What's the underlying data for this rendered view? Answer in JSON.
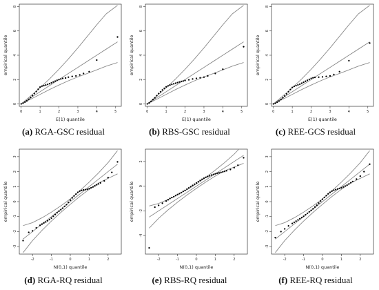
{
  "chart_data": [
    {
      "type": "scatter",
      "panel_id": "a",
      "caption_label": "(a)",
      "caption_text": " RGA-GSC residual",
      "xlabel": "E(1) quantile",
      "ylabel": "empirical quantile",
      "xlim": [
        -0.1,
        5.3
      ],
      "ylim": [
        -0.2,
        8.2
      ],
      "xticks": [
        0,
        1,
        2,
        3,
        4,
        5
      ],
      "yticks": [
        0,
        2,
        4,
        6,
        8
      ],
      "points": [
        [
          0,
          0
        ],
        [
          0.1,
          0.06
        ],
        [
          0.2,
          0.15
        ],
        [
          0.3,
          0.25
        ],
        [
          0.4,
          0.38
        ],
        [
          0.5,
          0.52
        ],
        [
          0.6,
          0.68
        ],
        [
          0.7,
          0.85
        ],
        [
          0.8,
          1.02
        ],
        [
          0.9,
          1.2
        ],
        [
          1.0,
          1.38
        ],
        [
          1.1,
          1.46
        ],
        [
          1.2,
          1.5
        ],
        [
          1.3,
          1.55
        ],
        [
          1.4,
          1.6
        ],
        [
          1.5,
          1.66
        ],
        [
          1.6,
          1.73
        ],
        [
          1.7,
          1.8
        ],
        [
          1.8,
          1.87
        ],
        [
          1.9,
          1.94
        ],
        [
          2.0,
          2.0
        ],
        [
          2.1,
          2.05
        ],
        [
          2.2,
          2.1
        ],
        [
          2.35,
          2.13
        ],
        [
          2.5,
          2.2
        ],
        [
          2.7,
          2.26
        ],
        [
          2.9,
          2.3
        ],
        [
          3.1,
          2.38
        ],
        [
          3.3,
          2.5
        ],
        [
          3.6,
          2.65
        ],
        [
          4.0,
          3.6
        ],
        [
          5.1,
          5.5
        ]
      ],
      "lines": {
        "x": [
          0,
          0.5,
          1,
          1.5,
          2,
          2.5,
          3,
          3.5,
          4,
          4.5,
          5.1
        ],
        "lower": [
          0,
          0.38,
          0.78,
          1.18,
          1.55,
          1.9,
          2.22,
          2.5,
          2.8,
          3.1,
          3.4
        ],
        "center": [
          0,
          0.5,
          1,
          1.5,
          2,
          2.5,
          3,
          3.5,
          4,
          4.5,
          5.1
        ],
        "upper": [
          0,
          0.65,
          1.32,
          2.05,
          2.85,
          3.7,
          4.6,
          5.55,
          6.5,
          7.4,
          8.1
        ]
      }
    },
    {
      "type": "scatter",
      "panel_id": "b",
      "caption_label": "(b)",
      "caption_text": " RBS-GSC residual",
      "xlabel": "E(1) quantile",
      "ylabel": "empirical quantile",
      "xlim": [
        -0.1,
        5.3
      ],
      "ylim": [
        -0.2,
        8.2
      ],
      "xticks": [
        0,
        1,
        2,
        3,
        4,
        5
      ],
      "yticks": [
        0,
        2,
        4,
        6,
        8
      ],
      "points": [
        [
          0,
          0
        ],
        [
          0.1,
          0.08
        ],
        [
          0.2,
          0.2
        ],
        [
          0.3,
          0.35
        ],
        [
          0.4,
          0.5
        ],
        [
          0.5,
          0.68
        ],
        [
          0.6,
          0.85
        ],
        [
          0.7,
          1.0
        ],
        [
          0.8,
          1.15
        ],
        [
          0.9,
          1.28
        ],
        [
          1.0,
          1.4
        ],
        [
          1.1,
          1.48
        ],
        [
          1.2,
          1.55
        ],
        [
          1.3,
          1.6
        ],
        [
          1.4,
          1.65
        ],
        [
          1.5,
          1.7
        ],
        [
          1.6,
          1.75
        ],
        [
          1.7,
          1.8
        ],
        [
          1.8,
          1.85
        ],
        [
          1.9,
          1.88
        ],
        [
          2.0,
          1.92
        ],
        [
          2.2,
          1.98
        ],
        [
          2.4,
          2.05
        ],
        [
          2.6,
          2.1
        ],
        [
          2.8,
          2.15
        ],
        [
          3.0,
          2.2
        ],
        [
          3.2,
          2.3
        ],
        [
          3.6,
          2.5
        ],
        [
          4.0,
          2.85
        ],
        [
          5.1,
          4.7
        ]
      ],
      "lines": {
        "x": [
          0,
          0.5,
          1,
          1.5,
          2,
          2.5,
          3,
          3.5,
          4,
          4.5,
          5.1
        ],
        "lower": [
          0,
          0.38,
          0.78,
          1.18,
          1.55,
          1.9,
          2.22,
          2.5,
          2.8,
          3.1,
          3.4
        ],
        "center": [
          0,
          0.5,
          1,
          1.5,
          2,
          2.5,
          3,
          3.5,
          4,
          4.5,
          5.1
        ],
        "upper": [
          0,
          0.65,
          1.32,
          2.05,
          2.85,
          3.7,
          4.6,
          5.55,
          6.5,
          7.4,
          8.1
        ]
      }
    },
    {
      "type": "scatter",
      "panel_id": "c",
      "caption_label": "(c)",
      "caption_text": " REE-GCS residual",
      "xlabel": "E(1) quantile",
      "ylabel": "empirical quantile",
      "xlim": [
        -0.1,
        5.3
      ],
      "ylim": [
        -0.2,
        8.2
      ],
      "xticks": [
        0,
        1,
        2,
        3,
        4,
        5
      ],
      "yticks": [
        0,
        2,
        4,
        6,
        8
      ],
      "points": [
        [
          0,
          0
        ],
        [
          0.1,
          0.05
        ],
        [
          0.2,
          0.14
        ],
        [
          0.3,
          0.24
        ],
        [
          0.4,
          0.36
        ],
        [
          0.5,
          0.5
        ],
        [
          0.6,
          0.65
        ],
        [
          0.7,
          0.82
        ],
        [
          0.8,
          1.0
        ],
        [
          0.9,
          1.18
        ],
        [
          1.0,
          1.35
        ],
        [
          1.1,
          1.44
        ],
        [
          1.2,
          1.5
        ],
        [
          1.3,
          1.56
        ],
        [
          1.4,
          1.62
        ],
        [
          1.5,
          1.7
        ],
        [
          1.6,
          1.78
        ],
        [
          1.7,
          1.86
        ],
        [
          1.8,
          1.94
        ],
        [
          1.9,
          2.02
        ],
        [
          2.0,
          2.1
        ],
        [
          2.1,
          2.15
        ],
        [
          2.2,
          2.18
        ],
        [
          2.4,
          2.2
        ],
        [
          2.6,
          2.22
        ],
        [
          2.8,
          2.26
        ],
        [
          3.0,
          2.3
        ],
        [
          3.2,
          2.42
        ],
        [
          3.5,
          2.65
        ],
        [
          4.0,
          3.55
        ],
        [
          5.1,
          5.0
        ]
      ],
      "lines": {
        "x": [
          0,
          0.5,
          1,
          1.5,
          2,
          2.5,
          3,
          3.5,
          4,
          4.5,
          5.1
        ],
        "lower": [
          0,
          0.38,
          0.78,
          1.18,
          1.55,
          1.9,
          2.22,
          2.5,
          2.8,
          3.1,
          3.4
        ],
        "center": [
          0,
          0.5,
          1,
          1.5,
          2,
          2.5,
          3,
          3.5,
          4,
          4.5,
          5.1
        ],
        "upper": [
          0,
          0.65,
          1.32,
          2.05,
          2.85,
          3.7,
          4.6,
          5.55,
          6.5,
          7.4,
          8.1
        ]
      }
    },
    {
      "type": "scatter",
      "panel_id": "d",
      "caption_label": "(d)",
      "caption_text": " RGA-RQ residual",
      "xlabel": "N(0,1) quantile",
      "ylabel": "empirical quantile",
      "xlim": [
        -2.7,
        2.7
      ],
      "ylim": [
        -3.5,
        3.5
      ],
      "xticks": [
        -2,
        -1,
        0,
        1,
        2
      ],
      "yticks": [
        -3,
        -2,
        -1,
        0,
        1,
        2,
        3
      ],
      "points": [
        [
          -2.5,
          -2.6
        ],
        [
          -2.2,
          -2.05
        ],
        [
          -2.0,
          -1.95
        ],
        [
          -1.8,
          -1.75
        ],
        [
          -1.6,
          -1.58
        ],
        [
          -1.5,
          -1.5
        ],
        [
          -1.4,
          -1.42
        ],
        [
          -1.3,
          -1.36
        ],
        [
          -1.2,
          -1.28
        ],
        [
          -1.1,
          -1.2
        ],
        [
          -1.0,
          -1.1
        ],
        [
          -0.9,
          -0.98
        ],
        [
          -0.8,
          -0.86
        ],
        [
          -0.7,
          -0.74
        ],
        [
          -0.6,
          -0.64
        ],
        [
          -0.5,
          -0.54
        ],
        [
          -0.4,
          -0.44
        ],
        [
          -0.3,
          -0.32
        ],
        [
          -0.2,
          -0.2
        ],
        [
          -0.1,
          -0.05
        ],
        [
          0.0,
          0.1
        ],
        [
          0.1,
          0.25
        ],
        [
          0.2,
          0.38
        ],
        [
          0.3,
          0.5
        ],
        [
          0.4,
          0.62
        ],
        [
          0.5,
          0.7
        ],
        [
          0.6,
          0.75
        ],
        [
          0.7,
          0.78
        ],
        [
          0.8,
          0.8
        ],
        [
          0.9,
          0.82
        ],
        [
          1.0,
          0.86
        ],
        [
          1.1,
          0.92
        ],
        [
          1.2,
          0.98
        ],
        [
          1.3,
          1.05
        ],
        [
          1.4,
          1.12
        ],
        [
          1.5,
          1.18
        ],
        [
          1.6,
          1.25
        ],
        [
          1.8,
          1.38
        ],
        [
          2.0,
          1.6
        ],
        [
          2.2,
          1.95
        ],
        [
          2.5,
          2.65
        ]
      ],
      "lines": {
        "x": [
          -2.5,
          -2,
          -1.5,
          -1,
          -0.5,
          0,
          0.5,
          1,
          1.5,
          2,
          2.5
        ],
        "lower": [
          -3.4,
          -2.6,
          -1.92,
          -1.3,
          -0.72,
          -0.18,
          0.34,
          0.82,
          1.25,
          1.55,
          1.85
        ],
        "center": [
          -2.5,
          -2,
          -1.5,
          -1,
          -0.5,
          0,
          0.5,
          1,
          1.5,
          2,
          2.5
        ],
        "upper": [
          -1.6,
          -1.4,
          -1.08,
          -0.7,
          -0.28,
          0.18,
          0.72,
          1.3,
          1.92,
          2.6,
          3.4
        ]
      }
    },
    {
      "type": "scatter",
      "panel_id": "e",
      "caption_label": "(e)",
      "caption_text": " RBS-RQ residual",
      "xlabel": "N(0,1) quantile",
      "ylabel": "empirical quantile",
      "xlim": [
        -2.7,
        2.7
      ],
      "ylim": [
        -5.5,
        3.0
      ],
      "xticks": [
        -2,
        -1,
        0,
        1,
        2
      ],
      "yticks": [
        -4,
        -2,
        0,
        2
      ],
      "points": [
        [
          -2.5,
          -5.0
        ],
        [
          -2.2,
          -1.7
        ],
        [
          -2.0,
          -1.55
        ],
        [
          -1.8,
          -1.38
        ],
        [
          -1.6,
          -1.2
        ],
        [
          -1.5,
          -1.1
        ],
        [
          -1.4,
          -1.0
        ],
        [
          -1.3,
          -0.92
        ],
        [
          -1.2,
          -0.85
        ],
        [
          -1.1,
          -0.76
        ],
        [
          -1.0,
          -0.68
        ],
        [
          -0.9,
          -0.6
        ],
        [
          -0.8,
          -0.52
        ],
        [
          -0.7,
          -0.42
        ],
        [
          -0.6,
          -0.34
        ],
        [
          -0.5,
          -0.24
        ],
        [
          -0.4,
          -0.14
        ],
        [
          -0.3,
          -0.04
        ],
        [
          -0.2,
          0.06
        ],
        [
          -0.1,
          0.16
        ],
        [
          0.0,
          0.26
        ],
        [
          0.1,
          0.36
        ],
        [
          0.2,
          0.46
        ],
        [
          0.3,
          0.56
        ],
        [
          0.4,
          0.64
        ],
        [
          0.5,
          0.72
        ],
        [
          0.6,
          0.78
        ],
        [
          0.7,
          0.84
        ],
        [
          0.8,
          0.9
        ],
        [
          0.9,
          0.95
        ],
        [
          1.0,
          1.0
        ],
        [
          1.1,
          1.04
        ],
        [
          1.2,
          1.08
        ],
        [
          1.3,
          1.12
        ],
        [
          1.4,
          1.16
        ],
        [
          1.5,
          1.2
        ],
        [
          1.6,
          1.25
        ],
        [
          1.8,
          1.35
        ],
        [
          2.0,
          1.5
        ],
        [
          2.2,
          1.7
        ],
        [
          2.5,
          2.3
        ]
      ],
      "lines": {
        "x": [
          -2.5,
          -2,
          -1.5,
          -1,
          -0.5,
          0,
          0.5,
          1,
          1.5,
          2,
          2.5
        ],
        "lower": [
          -3.4,
          -2.6,
          -1.92,
          -1.3,
          -0.72,
          -0.18,
          0.34,
          0.82,
          1.25,
          1.55,
          1.85
        ],
        "center": [
          -2.5,
          -2,
          -1.5,
          -1,
          -0.5,
          0,
          0.5,
          1,
          1.5,
          2,
          2.5
        ],
        "upper": [
          -1.6,
          -1.4,
          -1.08,
          -0.7,
          -0.28,
          0.18,
          0.72,
          1.3,
          1.92,
          2.6,
          3.4
        ]
      }
    },
    {
      "type": "scatter",
      "panel_id": "f",
      "caption_label": "(f)",
      "caption_text": " REE-RQ residual",
      "xlabel": "N(0,1) quantile",
      "ylabel": "empirical quantile",
      "xlim": [
        -2.7,
        2.7
      ],
      "ylim": [
        -3.5,
        3.5
      ],
      "xticks": [
        -2,
        -1,
        0,
        1,
        2
      ],
      "yticks": [
        -3,
        -2,
        -1,
        0,
        1,
        2,
        3
      ],
      "points": [
        [
          -2.5,
          -2.4
        ],
        [
          -2.2,
          -2.0
        ],
        [
          -2.0,
          -1.82
        ],
        [
          -1.8,
          -1.62
        ],
        [
          -1.6,
          -1.46
        ],
        [
          -1.5,
          -1.38
        ],
        [
          -1.4,
          -1.3
        ],
        [
          -1.3,
          -1.22
        ],
        [
          -1.2,
          -1.14
        ],
        [
          -1.1,
          -1.06
        ],
        [
          -1.0,
          -0.98
        ],
        [
          -0.9,
          -0.88
        ],
        [
          -0.8,
          -0.78
        ],
        [
          -0.7,
          -0.68
        ],
        [
          -0.6,
          -0.58
        ],
        [
          -0.5,
          -0.48
        ],
        [
          -0.4,
          -0.36
        ],
        [
          -0.3,
          -0.24
        ],
        [
          -0.2,
          -0.1
        ],
        [
          -0.1,
          0.04
        ],
        [
          0.0,
          0.16
        ],
        [
          0.1,
          0.28
        ],
        [
          0.2,
          0.4
        ],
        [
          0.3,
          0.52
        ],
        [
          0.4,
          0.62
        ],
        [
          0.5,
          0.7
        ],
        [
          0.6,
          0.76
        ],
        [
          0.7,
          0.8
        ],
        [
          0.8,
          0.84
        ],
        [
          0.9,
          0.88
        ],
        [
          1.0,
          0.92
        ],
        [
          1.1,
          0.98
        ],
        [
          1.2,
          1.04
        ],
        [
          1.3,
          1.1
        ],
        [
          1.4,
          1.18
        ],
        [
          1.5,
          1.26
        ],
        [
          1.6,
          1.34
        ],
        [
          1.8,
          1.5
        ],
        [
          2.0,
          1.7
        ],
        [
          2.2,
          2.0
        ],
        [
          2.5,
          2.5
        ]
      ],
      "lines": {
        "x": [
          -2.5,
          -2,
          -1.5,
          -1,
          -0.5,
          0,
          0.5,
          1,
          1.5,
          2,
          2.5
        ],
        "lower": [
          -3.4,
          -2.6,
          -1.92,
          -1.3,
          -0.72,
          -0.18,
          0.34,
          0.82,
          1.25,
          1.55,
          1.85
        ],
        "center": [
          -2.5,
          -2,
          -1.5,
          -1,
          -0.5,
          0,
          0.5,
          1,
          1.5,
          2,
          2.5
        ],
        "upper": [
          -1.6,
          -1.4,
          -1.08,
          -0.7,
          -0.28,
          0.18,
          0.72,
          1.3,
          1.92,
          2.6,
          3.4
        ]
      }
    }
  ]
}
